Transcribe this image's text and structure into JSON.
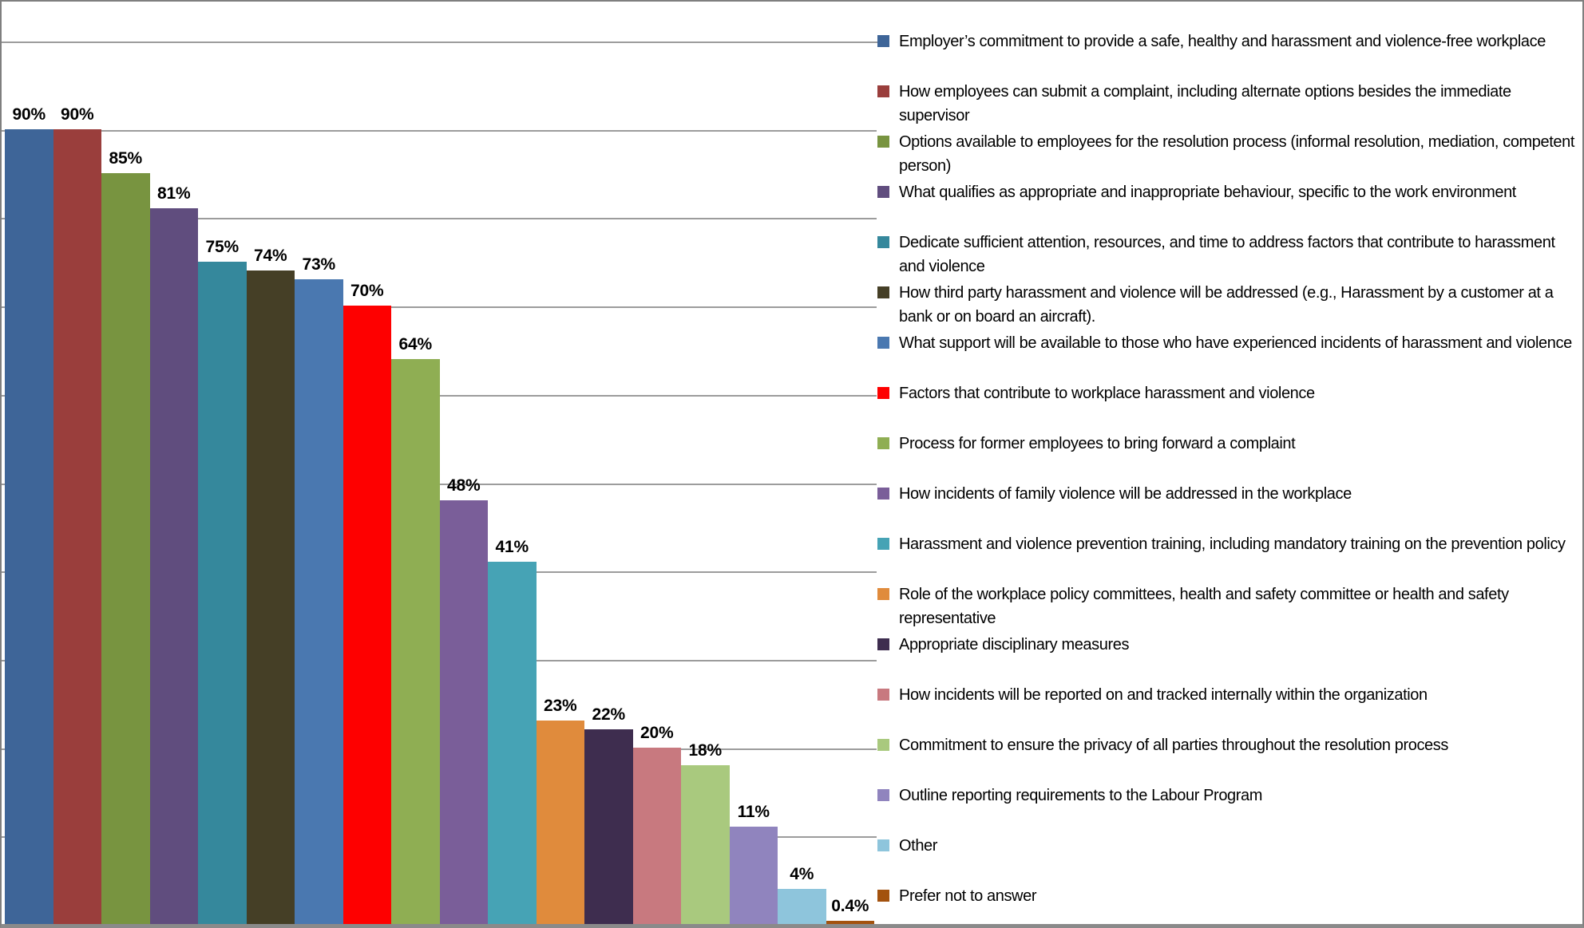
{
  "chart_data": {
    "type": "bar",
    "title": "",
    "xlabel": "",
    "ylabel": "",
    "ylim": [
      0,
      100
    ],
    "gridlines_pct": [
      100,
      90,
      80,
      70,
      60,
      50,
      40,
      30,
      20,
      10
    ],
    "grid": "horizontal",
    "legend_position": "right",
    "categories": [
      "Employer’s commitment to provide a safe, healthy and harassment and violence-free workplace",
      "How employees can submit a complaint, including alternate options besides the immediate supervisor",
      "Options available to employees for the resolution process (informal resolution, mediation, competent person)",
      "What qualifies as appropriate and inappropriate behaviour, specific to the work environment",
      "Dedicate sufficient attention, resources, and time to address factors that contribute to harassment and violence",
      "How third party harassment and violence will be addressed (e.g., Harassment by a customer at a bank or on board an aircraft).",
      "What support will be available to those who have experienced incidents of harassment and violence",
      "Factors that contribute to workplace harassment and violence",
      "Process for former employees to bring forward a complaint",
      "How incidents of family violence will be addressed in the workplace",
      "Harassment and violence prevention training, including mandatory training on the prevention policy",
      "Role of the workplace policy committees, health and safety committee or health and safety representative",
      "Appropriate disciplinary measures",
      "How incidents will be reported on and tracked internally within the organization",
      "Commitment to ensure the privacy of all parties throughout the resolution process",
      "Outline reporting requirements to the Labour Program",
      "Other",
      "Prefer not to answer"
    ],
    "values": [
      90,
      90,
      85,
      81,
      75,
      74,
      73,
      70,
      64,
      48,
      41,
      23,
      22,
      20,
      18,
      11,
      4,
      0.4
    ],
    "value_labels": [
      "90%",
      "90%",
      "85%",
      "81%",
      "75%",
      "74%",
      "73%",
      "70%",
      "64%",
      "48%",
      "41%",
      "23%",
      "22%",
      "20%",
      "18%",
      "11%",
      "4%",
      "0.4%"
    ],
    "colors": [
      "#3E6598",
      "#9A3E3C",
      "#789440",
      "#604D7E",
      "#35889C",
      "#453F26",
      "#4A78B0",
      "#FE0000",
      "#8FAE53",
      "#7A5E99",
      "#46A3B5",
      "#E08B3C",
      "#3E2D4F",
      "#C8797F",
      "#A9C97E",
      "#9084BE",
      "#8EC5DC",
      "#A3520E"
    ]
  },
  "styles": {
    "gridline_color": "#9c9c9c",
    "border_color": "#7f7f7f",
    "background": "#ffffff",
    "label_color": "#000000"
  }
}
